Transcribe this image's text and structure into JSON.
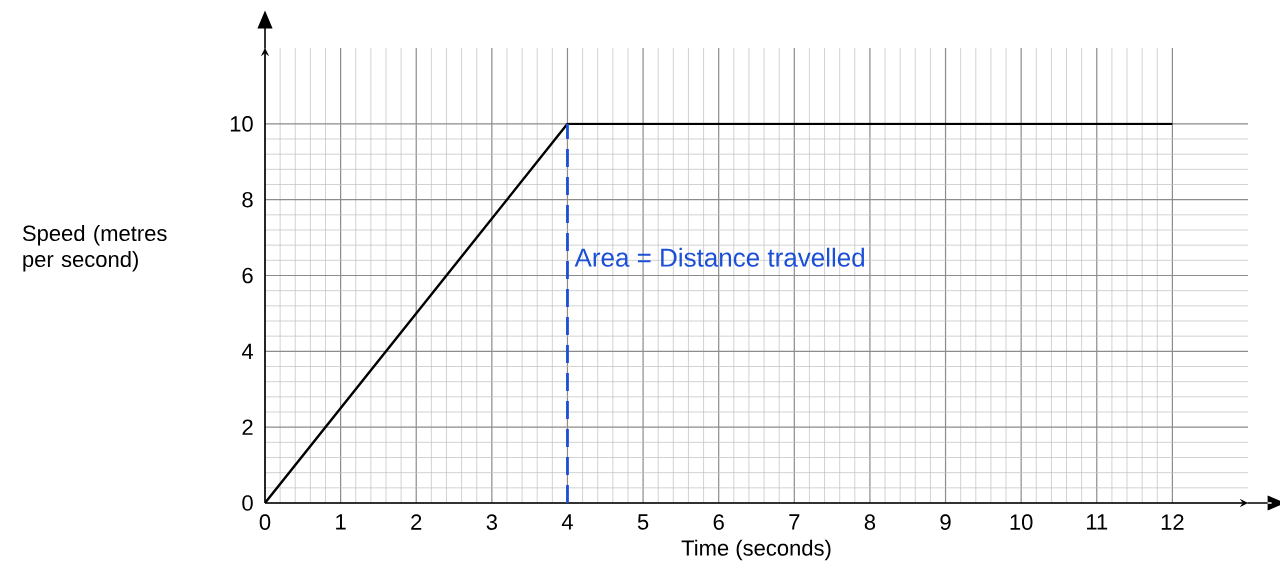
{
  "chart_data": {
    "type": "line",
    "xlabel": "Time (seconds)",
    "ylabel": "Speed (metres per second)",
    "x": [
      0,
      4,
      12
    ],
    "series": [
      {
        "color": "#000000",
        "values": [
          0,
          10,
          10
        ]
      }
    ],
    "xlim": [
      0,
      13
    ],
    "ylim": [
      0,
      12
    ],
    "xticks": [
      0,
      1,
      2,
      3,
      4,
      5,
      6,
      7,
      8,
      9,
      10,
      11,
      12
    ],
    "yticks": [
      0,
      2,
      4,
      6,
      8,
      10
    ],
    "grid": true,
    "ref_lines": [
      {
        "axis": "x",
        "value": 4,
        "label": "Area = Distance travelled",
        "color": "#1a4fd6",
        "line_style": "dashed"
      }
    ]
  }
}
